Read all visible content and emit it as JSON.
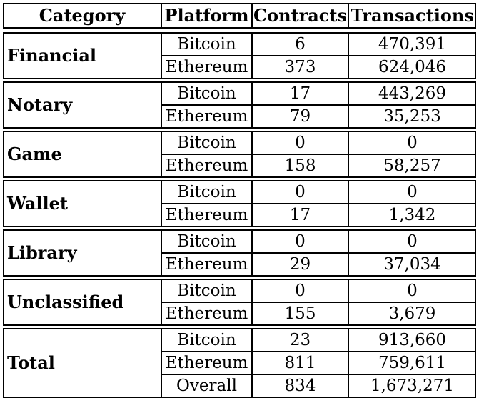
{
  "table": {
    "headers": [
      "Category",
      "Platform",
      "Contracts",
      "Transactions"
    ],
    "groups": [
      {
        "category": "Financial",
        "rows": [
          {
            "platform": "Bitcoin",
            "contracts": "6",
            "transactions": "470,391"
          },
          {
            "platform": "Ethereum",
            "contracts": "373",
            "transactions": "624,046"
          }
        ]
      },
      {
        "category": "Notary",
        "rows": [
          {
            "platform": "Bitcoin",
            "contracts": "17",
            "transactions": "443,269"
          },
          {
            "platform": "Ethereum",
            "contracts": "79",
            "transactions": "35,253"
          }
        ]
      },
      {
        "category": "Game",
        "rows": [
          {
            "platform": "Bitcoin",
            "contracts": "0",
            "transactions": "0"
          },
          {
            "platform": "Ethereum",
            "contracts": "158",
            "transactions": "58,257"
          }
        ]
      },
      {
        "category": "Wallet",
        "rows": [
          {
            "platform": "Bitcoin",
            "contracts": "0",
            "transactions": "0"
          },
          {
            "platform": "Ethereum",
            "contracts": "17",
            "transactions": "1,342"
          }
        ]
      },
      {
        "category": "Library",
        "rows": [
          {
            "platform": "Bitcoin",
            "contracts": "0",
            "transactions": "0"
          },
          {
            "platform": "Ethereum",
            "contracts": "29",
            "transactions": "37,034"
          }
        ]
      },
      {
        "category": "Unclassified",
        "rows": [
          {
            "platform": "Bitcoin",
            "contracts": "0",
            "transactions": "0"
          },
          {
            "platform": "Ethereum",
            "contracts": "155",
            "transactions": "3,679"
          }
        ]
      },
      {
        "category": "Total",
        "rows": [
          {
            "platform": "Bitcoin",
            "contracts": "23",
            "transactions": "913,660"
          },
          {
            "platform": "Ethereum",
            "contracts": "811",
            "transactions": "759,611"
          },
          {
            "platform": "Overall",
            "contracts": "834",
            "transactions": "1,673,271"
          }
        ]
      }
    ]
  }
}
